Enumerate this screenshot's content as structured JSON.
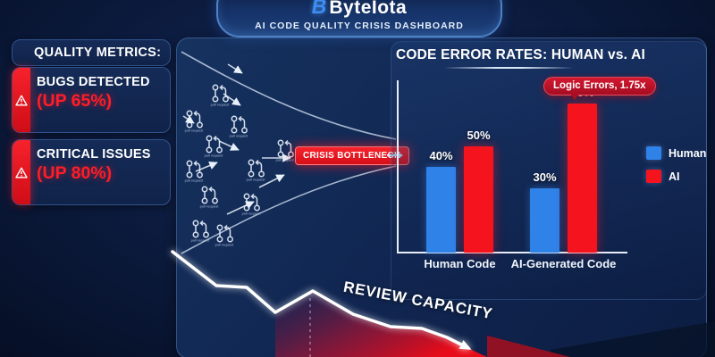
{
  "header": {
    "logo_letter": "B",
    "brand": "ByteIota",
    "subtitle": "AI CODE QUALITY CRISIS DASHBOARD"
  },
  "sidebar": {
    "heading": "QUALITY METRICS:",
    "metrics": [
      {
        "label": "BUGS DETECTED",
        "delta": "(UP 65%)"
      },
      {
        "label": "CRITICAL ISSUES",
        "delta": "(UP 80%)"
      }
    ]
  },
  "funnel": {
    "node_label": "pull request",
    "bottleneck_label": "CRISIS BOTTLENECK"
  },
  "chart_data": {
    "type": "bar",
    "title": "CODE ERROR RATES: HUMAN vs. AI",
    "categories": [
      "Human Code",
      "AI-Generated Code"
    ],
    "series": [
      {
        "name": "Human",
        "color": "#2f82e8",
        "values": [
          40,
          30
        ]
      },
      {
        "name": "AI",
        "color": "#f5141d",
        "values": [
          50,
          70
        ]
      }
    ],
    "value_label_suffix": "%",
    "annotation": "Logic Errors, 1.75x",
    "xlabel": "",
    "ylabel": "",
    "ylim": [
      0,
      80
    ],
    "grid": false,
    "legend_position": "right"
  },
  "trend": {
    "label": "REVIEW CAPACITY"
  },
  "colors": {
    "accent_red": "#f5141d",
    "accent_blue": "#2f82e8",
    "background": "#0c1d42",
    "panel": "#10254e"
  }
}
